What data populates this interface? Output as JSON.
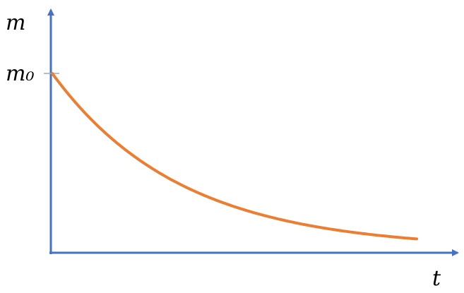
{
  "y_label": "m",
  "y_mark_label": "m₀",
  "x_label": "t"
}
